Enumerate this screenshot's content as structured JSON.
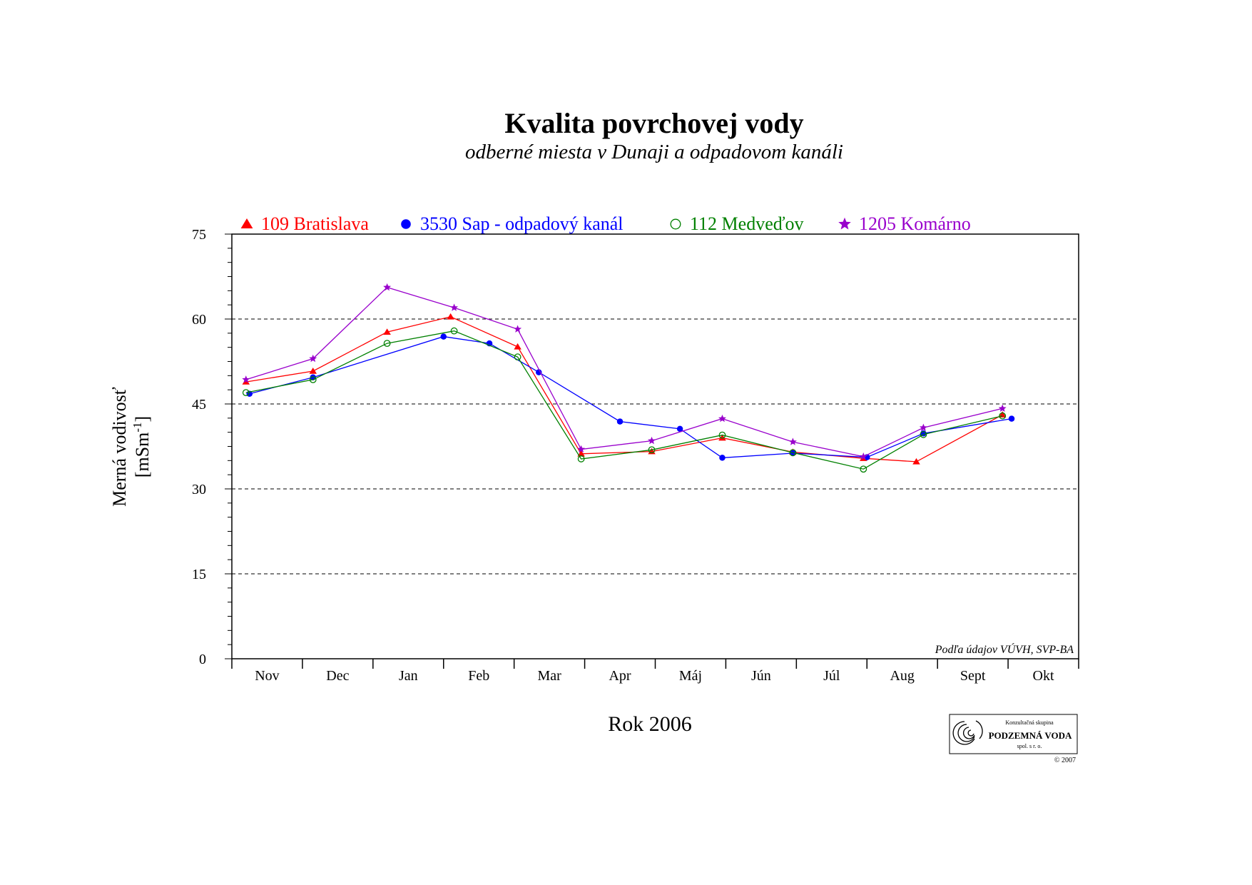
{
  "chart_data": {
    "type": "line",
    "title": "Kvalita povrchovej vody",
    "subtitle": "odberné miesta v Dunaji a odpadovom kanáli",
    "xlabel": "Rok 2006",
    "ylabel": "Merná vodivosť",
    "yunit": "[mSm-1]",
    "ylim": [
      0,
      75
    ],
    "yticks": [
      0,
      15,
      30,
      45,
      60,
      75
    ],
    "categories": [
      "Nov",
      "Dec",
      "Jan",
      "Feb",
      "Mar",
      "Apr",
      "Máj",
      "Jún",
      "Júl",
      "Aug",
      "Sept",
      "Okt"
    ],
    "grid": "horizontal dashed at 15, 30, 45, 60",
    "legend_position": "top",
    "source_note": "Podľa údajov VÚVH, SVP-BA",
    "series": [
      {
        "name": "109 Bratislava",
        "color": "#ff0000",
        "marker": "triangle",
        "points": [
          [
            0.2,
            48.9
          ],
          [
            1.15,
            50.8
          ],
          [
            2.2,
            57.7
          ],
          [
            3.1,
            60.4
          ],
          [
            4.05,
            55.1
          ],
          [
            4.95,
            36.2
          ],
          [
            5.95,
            36.6
          ],
          [
            6.95,
            39.0
          ],
          [
            7.95,
            36.5
          ],
          [
            8.95,
            35.4
          ],
          [
            9.7,
            34.8
          ],
          [
            10.92,
            43.1
          ]
        ]
      },
      {
        "name": "3530 Sap - odpadový kanál",
        "color": "#0000ff",
        "marker": "filled-circle",
        "points": [
          [
            0.25,
            46.8
          ],
          [
            1.15,
            49.7
          ],
          [
            3.0,
            56.9
          ],
          [
            3.65,
            55.7
          ],
          [
            4.35,
            50.6
          ],
          [
            5.5,
            41.9
          ],
          [
            6.35,
            40.6
          ],
          [
            6.95,
            35.5
          ],
          [
            7.95,
            36.3
          ],
          [
            9.0,
            35.6
          ],
          [
            9.8,
            39.8
          ],
          [
            11.05,
            42.4
          ]
        ]
      },
      {
        "name": "112 Medveďov",
        "color": "#008000",
        "marker": "open-circle",
        "points": [
          [
            0.2,
            47.0
          ],
          [
            1.15,
            49.3
          ],
          [
            2.2,
            55.7
          ],
          [
            3.15,
            57.9
          ],
          [
            4.05,
            53.3
          ],
          [
            4.95,
            35.3
          ],
          [
            5.95,
            36.9
          ],
          [
            6.95,
            39.5
          ],
          [
            7.95,
            36.4
          ],
          [
            8.95,
            33.5
          ],
          [
            9.8,
            39.6
          ],
          [
            10.92,
            42.9
          ]
        ]
      },
      {
        "name": "1205 Komárno",
        "color": "#9900cc",
        "marker": "star",
        "points": [
          [
            0.2,
            49.3
          ],
          [
            1.15,
            53.0
          ],
          [
            2.2,
            65.6
          ],
          [
            3.15,
            62.0
          ],
          [
            4.05,
            58.2
          ],
          [
            4.95,
            37.0
          ],
          [
            5.95,
            38.5
          ],
          [
            6.95,
            42.4
          ],
          [
            7.95,
            38.3
          ],
          [
            8.95,
            35.7
          ],
          [
            9.8,
            40.8
          ],
          [
            10.92,
            44.2
          ]
        ]
      }
    ]
  },
  "logo": {
    "line1": "Konzultačná skupina",
    "line2": "PODZEMNÁ VODA",
    "line3": "spol. s r. o.",
    "copyright": "© 2007"
  }
}
